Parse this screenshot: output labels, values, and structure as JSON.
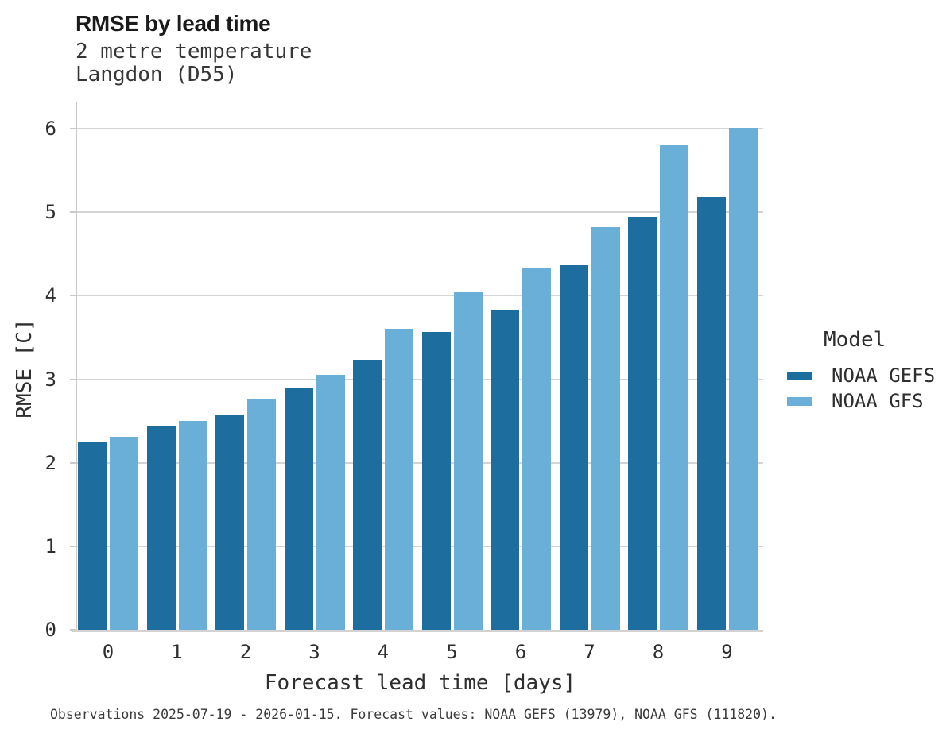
{
  "header": {
    "title": "RMSE by lead time",
    "subtitle_line1": "2 metre temperature",
    "subtitle_line2": "Langdon (D55)"
  },
  "chart_data": {
    "type": "bar",
    "title": "RMSE by lead time",
    "subtitle": [
      "2 metre temperature",
      "Langdon (D55)"
    ],
    "categories": [
      "0",
      "1",
      "2",
      "3",
      "4",
      "5",
      "6",
      "7",
      "8",
      "9"
    ],
    "series": [
      {
        "name": "NOAA GEFS",
        "color": "#1d6d9e",
        "values": [
          2.24,
          2.43,
          2.58,
          2.89,
          3.23,
          3.57,
          3.83,
          4.36,
          4.94,
          5.18
        ]
      },
      {
        "name": "NOAA GFS",
        "color": "#69afd8",
        "values": [
          2.31,
          2.5,
          2.76,
          3.05,
          3.6,
          4.04,
          4.34,
          4.82,
          5.8,
          6.01
        ]
      }
    ],
    "xlabel": "Forecast lead time [days]",
    "ylabel": "RMSE [C]",
    "ylim": [
      0,
      6.31
    ],
    "yticks": [
      0,
      1,
      2,
      3,
      4,
      5,
      6
    ],
    "grid": "horizontal",
    "legend_position": "right",
    "gridline_color": "#d4d4d4",
    "spine_color": "#c9c9c9"
  },
  "legend": {
    "title": "Model",
    "entries": [
      {
        "label": "NOAA GEFS",
        "color": "#1d6d9e"
      },
      {
        "label": "NOAA GFS",
        "color": "#69afd8"
      }
    ]
  },
  "footer": {
    "note": "Observations 2025-07-19 - 2026-01-15. Forecast values: NOAA GEFS (13979), NOAA GFS (111820)."
  }
}
